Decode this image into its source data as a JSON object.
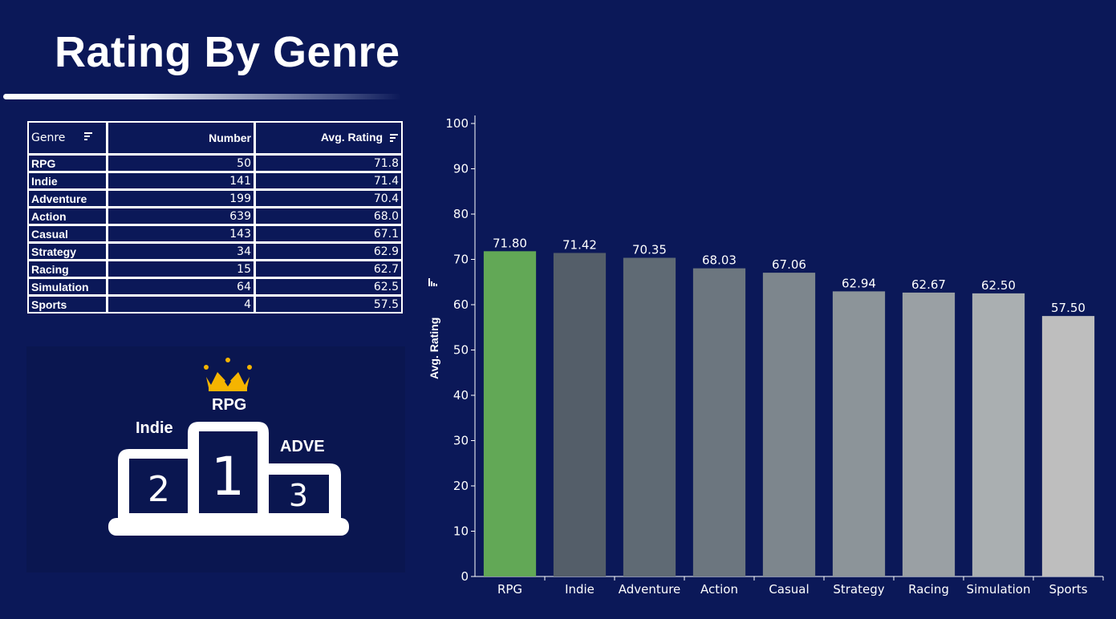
{
  "title": "Rating By Genre",
  "table": {
    "headers": {
      "genre": "Genre",
      "number": "Number",
      "avg": "Avg. Rating"
    },
    "rows": [
      {
        "genre": "RPG",
        "number": "50",
        "avg": "71.8"
      },
      {
        "genre": "Indie",
        "number": "141",
        "avg": "71.4"
      },
      {
        "genre": "Adventure",
        "number": "199",
        "avg": "70.4"
      },
      {
        "genre": "Action",
        "number": "639",
        "avg": "68.0"
      },
      {
        "genre": "Casual",
        "number": "143",
        "avg": "67.1"
      },
      {
        "genre": "Strategy",
        "number": "34",
        "avg": "62.9"
      },
      {
        "genre": "Racing",
        "number": "15",
        "avg": "62.7"
      },
      {
        "genre": "Simulation",
        "number": "64",
        "avg": "62.5"
      },
      {
        "genre": "Sports",
        "number": "4",
        "avg": "57.5"
      }
    ]
  },
  "podium": {
    "first": {
      "label": "RPG",
      "place": "1"
    },
    "second": {
      "label": "Indie",
      "place": "2"
    },
    "third": {
      "label": "ADVE",
      "place": "3"
    },
    "crown_color": "#f5b400",
    "icon": "crown-icon"
  },
  "chart_data": {
    "type": "bar",
    "title": "",
    "xlabel": "",
    "ylabel": "Avg. Rating",
    "ylim": [
      0,
      100
    ],
    "yticks": [
      0,
      10,
      20,
      30,
      40,
      50,
      60,
      70,
      80,
      90,
      100
    ],
    "categories": [
      "RPG",
      "Indie",
      "Adventure",
      "Action",
      "Casual",
      "Strategy",
      "Racing",
      "Simulation",
      "Sports"
    ],
    "values": [
      71.8,
      71.42,
      70.35,
      68.03,
      67.06,
      62.94,
      62.67,
      62.5,
      57.5
    ],
    "value_labels": [
      "71.80",
      "71.42",
      "70.35",
      "68.03",
      "67.06",
      "62.94",
      "62.67",
      "62.50",
      "57.50"
    ],
    "colors": [
      "#62a856",
      "#545e69",
      "#5f6a74",
      "#6c767f",
      "#7d868d",
      "#8c9499",
      "#9aa0a4",
      "#aaafb1",
      "#bebebe"
    ],
    "grid": false
  },
  "theme": {
    "background": "#0b1858",
    "text": "#ffffff"
  }
}
